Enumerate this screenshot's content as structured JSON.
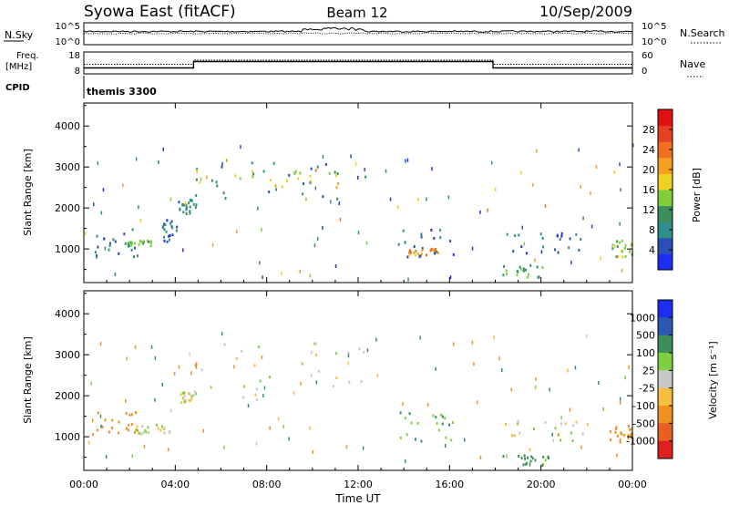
{
  "header": {
    "radar": "Syowa East (fitACF)",
    "beam": "Beam 12",
    "date": "10/Sep/2009"
  },
  "top_panels": {
    "nsky_label": "N.Sky",
    "nsky_ticks": [
      "10^5",
      "10^0"
    ],
    "nsearch_label": "N.Search",
    "nsearch_ticks": [
      "10^5",
      "10^0"
    ],
    "freq_label_1": "Freq.",
    "freq_label_2": "[MHz]",
    "freq_ticks": [
      "18",
      "8"
    ],
    "nave_label": "Nave",
    "nave_ticks": [
      "60",
      "0"
    ],
    "cpid_label": "CPID",
    "cpid_value": "themis 3300"
  },
  "colors": {
    "power_scale": [
      "#1c2ff0",
      "#2850b8",
      "#2f8f8a",
      "#3c8f5a",
      "#7fcf3a",
      "#f0d020",
      "#f5a020",
      "#f07020",
      "#e84020",
      "#e01010"
    ],
    "velocity_scale": [
      "#1c2ff0",
      "#2b58b0",
      "#3c8f5a",
      "#7fd040",
      "#c8c8c8",
      "#f5c040",
      "#f09020",
      "#e86020",
      "#e02020"
    ]
  },
  "chart_data": [
    {
      "type": "heatmap",
      "name": "power",
      "ylabel": "Slant Range [km]",
      "ylim": [
        180,
        4560
      ],
      "yticks": [
        "1000",
        "2000",
        "3000",
        "4000"
      ],
      "xlim": [
        0,
        24
      ],
      "colorbar": {
        "label": "Power [dB]",
        "range": [
          0,
          32
        ],
        "ticks": [
          "4",
          "8",
          "12",
          "16",
          "20",
          "24",
          "28"
        ]
      },
      "regions": [
        {
          "t": [
            0.4,
            2.6
          ],
          "r": [
            800,
            1500
          ],
          "value": 6
        },
        {
          "t": [
            1.6,
            3.1
          ],
          "r": [
            1050,
            1200
          ],
          "value": 13
        },
        {
          "t": [
            3.4,
            4.1
          ],
          "r": [
            1100,
            1700
          ],
          "value": 6
        },
        {
          "t": [
            4.1,
            4.9
          ],
          "r": [
            1850,
            2200
          ],
          "value": 9
        },
        {
          "t": [
            4.8,
            12.3
          ],
          "r": [
            2200,
            3100
          ],
          "value": 8
        },
        {
          "t": [
            5.0,
            11.5
          ],
          "r": [
            2500,
            2900
          ],
          "value": 16
        },
        {
          "t": [
            13.6,
            16.3
          ],
          "r": [
            800,
            1500
          ],
          "value": 6
        },
        {
          "t": [
            14.2,
            15.6
          ],
          "r": [
            850,
            1000
          ],
          "value": 22
        },
        {
          "t": [
            18.3,
            20.1
          ],
          "r": [
            300,
            600
          ],
          "value": 12
        },
        {
          "t": [
            18.3,
            22.2
          ],
          "r": [
            850,
            1400
          ],
          "value": 6
        },
        {
          "t": [
            23.1,
            24.0
          ],
          "r": [
            800,
            1200
          ],
          "value": 14
        }
      ]
    },
    {
      "type": "heatmap",
      "name": "velocity",
      "ylabel": "Slant Range [km]",
      "xlabel": "Time UT",
      "ylim": [
        180,
        4560
      ],
      "yticks": [
        "1000",
        "2000",
        "3000",
        "4000"
      ],
      "xlim": [
        0,
        24
      ],
      "xticks": [
        "00:00",
        "04:00",
        "08:00",
        "12:00",
        "16:00",
        "20:00",
        "00:00"
      ],
      "colorbar": {
        "label": "Velocity [m s⁻¹]",
        "ticks": [
          "1000",
          "500",
          "100",
          "25",
          "-25",
          "-100",
          "-500",
          "-1000"
        ]
      },
      "regions": [
        {
          "t": [
            0.2,
            2.3
          ],
          "r": [
            1050,
            1600
          ],
          "value": -300
        },
        {
          "t": [
            2.2,
            4.0
          ],
          "r": [
            1050,
            1300
          ],
          "value": 10
        },
        {
          "t": [
            4.2,
            4.9
          ],
          "r": [
            1800,
            2100
          ],
          "value": 10
        },
        {
          "t": [
            4.8,
            12.3
          ],
          "r": [
            1900,
            3300
          ],
          "value": 0
        },
        {
          "t": [
            13.6,
            16.4
          ],
          "r": [
            800,
            1600
          ],
          "value": 80
        },
        {
          "t": [
            18.3,
            20.3
          ],
          "r": [
            300,
            550
          ],
          "value": 150
        },
        {
          "t": [
            18.4,
            22.2
          ],
          "r": [
            850,
            1400
          ],
          "value": 0
        },
        {
          "t": [
            23.0,
            24.0
          ],
          "r": [
            850,
            1300
          ],
          "value": -300
        }
      ]
    }
  ]
}
